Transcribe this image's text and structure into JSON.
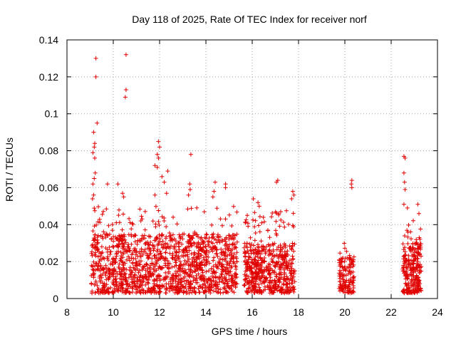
{
  "chart_data": {
    "type": "scatter",
    "title": "Day 118 of 2025, Rate Of TEC Index for receiver norf",
    "xlabel": "GPS time / hours",
    "ylabel": "ROTI / TECUs",
    "xlim": [
      8,
      24
    ],
    "ylim": [
      0,
      0.14
    ],
    "xticks": [
      8,
      10,
      12,
      14,
      16,
      18,
      20,
      22,
      24
    ],
    "xtick_labels": [
      "8",
      "10",
      "12",
      "14",
      "16",
      "18",
      "20",
      "22",
      "24"
    ],
    "yticks": [
      0,
      0.02,
      0.04,
      0.06,
      0.08,
      0.1,
      0.12,
      0.14
    ],
    "ytick_labels": [
      "0",
      "0.02",
      "0.04",
      "0.06",
      "0.08",
      "0.1",
      "0.12",
      "0.14"
    ],
    "grid": true,
    "marker": "+",
    "color": "#e00000",
    "outliers": [
      {
        "x": 9.25,
        "y": 0.13
      },
      {
        "x": 9.25,
        "y": 0.12
      },
      {
        "x": 10.55,
        "y": 0.132
      },
      {
        "x": 10.55,
        "y": 0.113
      },
      {
        "x": 10.52,
        "y": 0.109
      },
      {
        "x": 9.3,
        "y": 0.095
      },
      {
        "x": 9.15,
        "y": 0.09
      },
      {
        "x": 9.2,
        "y": 0.084
      },
      {
        "x": 9.18,
        "y": 0.082
      },
      {
        "x": 9.12,
        "y": 0.079
      },
      {
        "x": 9.2,
        "y": 0.076
      },
      {
        "x": 9.22,
        "y": 0.068
      },
      {
        "x": 9.18,
        "y": 0.065
      },
      {
        "x": 9.12,
        "y": 0.062
      },
      {
        "x": 9.15,
        "y": 0.056
      },
      {
        "x": 9.1,
        "y": 0.054
      },
      {
        "x": 9.75,
        "y": 0.062
      },
      {
        "x": 10.2,
        "y": 0.062
      },
      {
        "x": 10.4,
        "y": 0.057
      },
      {
        "x": 10.45,
        "y": 0.055
      },
      {
        "x": 11.95,
        "y": 0.085
      },
      {
        "x": 12.0,
        "y": 0.082
      },
      {
        "x": 11.9,
        "y": 0.078
      },
      {
        "x": 11.95,
        "y": 0.076
      },
      {
        "x": 11.8,
        "y": 0.072
      },
      {
        "x": 11.9,
        "y": 0.071
      },
      {
        "x": 12.35,
        "y": 0.069
      },
      {
        "x": 12.1,
        "y": 0.066
      },
      {
        "x": 12.2,
        "y": 0.063
      },
      {
        "x": 12.3,
        "y": 0.057
      },
      {
        "x": 11.8,
        "y": 0.056
      },
      {
        "x": 13.35,
        "y": 0.078
      },
      {
        "x": 13.3,
        "y": 0.062
      },
      {
        "x": 13.32,
        "y": 0.059
      },
      {
        "x": 13.25,
        "y": 0.056
      },
      {
        "x": 14.4,
        "y": 0.063
      },
      {
        "x": 14.35,
        "y": 0.058
      },
      {
        "x": 14.85,
        "y": 0.062
      },
      {
        "x": 14.85,
        "y": 0.06
      },
      {
        "x": 14.3,
        "y": 0.055
      },
      {
        "x": 16.05,
        "y": 0.054
      },
      {
        "x": 16.25,
        "y": 0.052
      },
      {
        "x": 16.3,
        "y": 0.05
      },
      {
        "x": 17.1,
        "y": 0.064
      },
      {
        "x": 17.05,
        "y": 0.063
      },
      {
        "x": 17.75,
        "y": 0.058
      },
      {
        "x": 17.8,
        "y": 0.056
      },
      {
        "x": 17.7,
        "y": 0.054
      },
      {
        "x": 20.3,
        "y": 0.064
      },
      {
        "x": 20.28,
        "y": 0.062
      },
      {
        "x": 20.3,
        "y": 0.06
      },
      {
        "x": 22.55,
        "y": 0.077
      },
      {
        "x": 22.6,
        "y": 0.076
      },
      {
        "x": 22.55,
        "y": 0.068
      },
      {
        "x": 22.58,
        "y": 0.063
      },
      {
        "x": 22.6,
        "y": 0.059
      },
      {
        "x": 22.55,
        "y": 0.051
      },
      {
        "x": 22.7,
        "y": 0.049
      },
      {
        "x": 23.15,
        "y": 0.051
      },
      {
        "x": 23.2,
        "y": 0.046
      }
    ],
    "dense_segments": [
      {
        "x_start": 9.05,
        "x_end": 15.35,
        "y_min": 0.003,
        "y_typical_max": 0.035,
        "y_peak": 0.05,
        "n": 1400
      },
      {
        "x_start": 15.65,
        "x_end": 17.85,
        "y_min": 0.003,
        "y_typical_max": 0.03,
        "y_peak": 0.048,
        "n": 550
      },
      {
        "x_start": 19.75,
        "x_end": 20.4,
        "y_min": 0.003,
        "y_typical_max": 0.022,
        "y_peak": 0.03,
        "n": 140
      },
      {
        "x_start": 22.5,
        "x_end": 23.3,
        "y_min": 0.003,
        "y_typical_max": 0.03,
        "y_peak": 0.045,
        "n": 260
      }
    ]
  }
}
